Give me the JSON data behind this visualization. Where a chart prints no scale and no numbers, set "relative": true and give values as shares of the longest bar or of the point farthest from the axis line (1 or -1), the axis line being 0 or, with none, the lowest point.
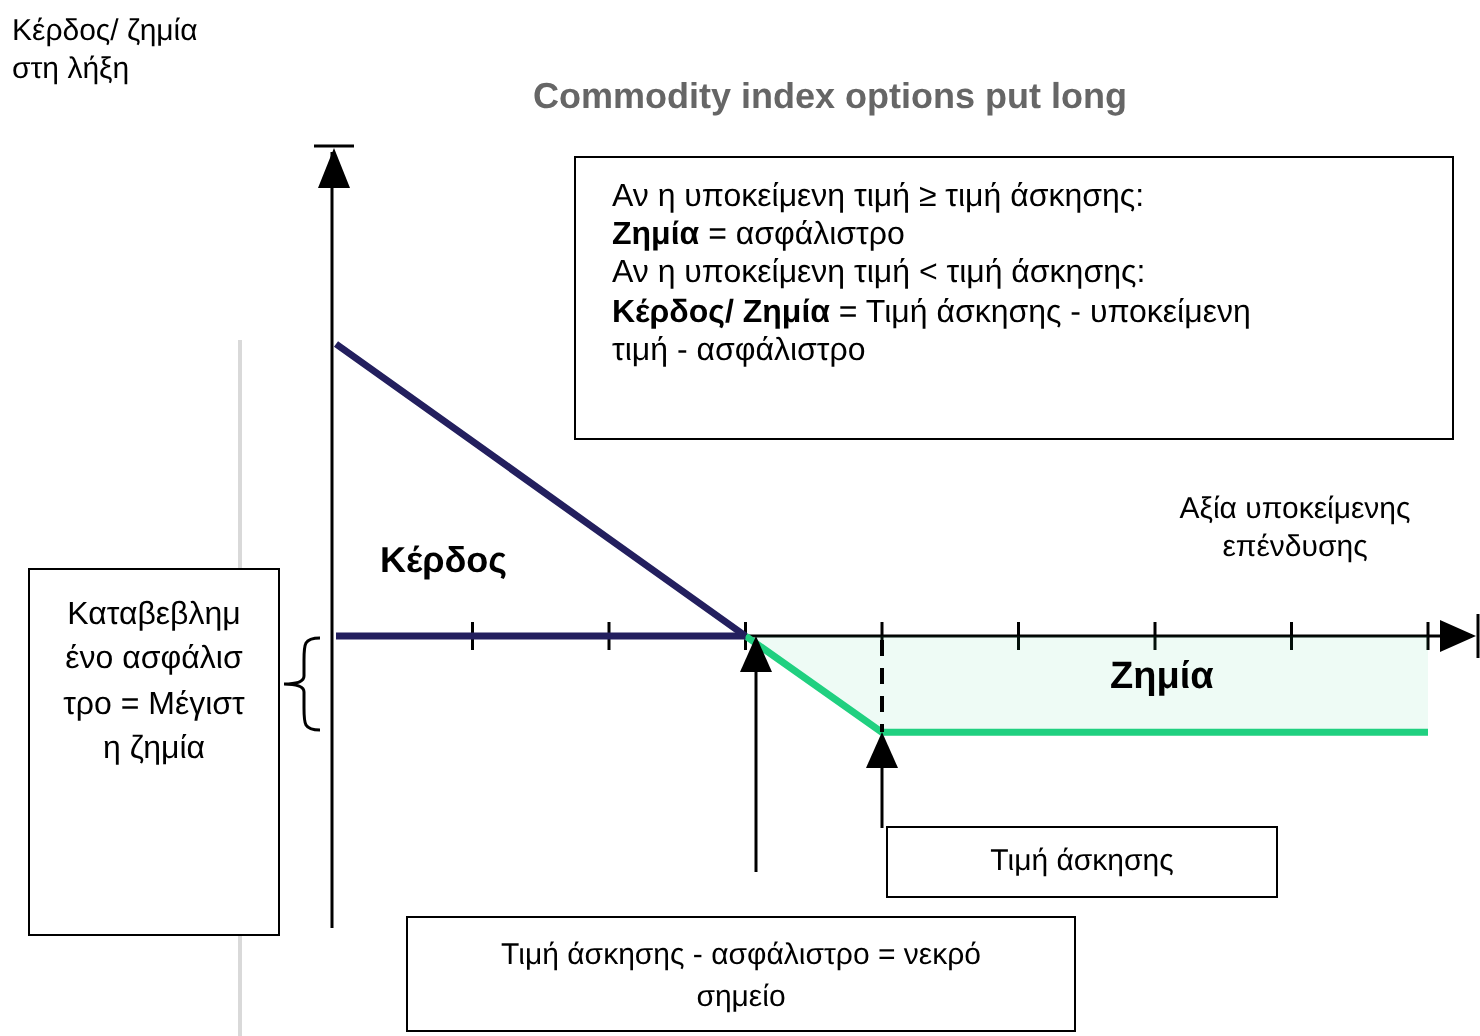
{
  "chart_data": {
    "type": "line",
    "title": "Commodity index options put long",
    "xlabel": "Αξία υποκείμενης επένδυσης",
    "relative": true,
    "marker": "none",
    "legend": false,
    "categories": [
      null,
      null,
      null,
      null,
      null,
      null,
      null,
      null,
      null
    ],
    "series": [
      {
        "color": "#231f5e",
        "values": [
          1,
          0.667,
          0.333,
          0,
          null,
          null,
          null,
          null,
          null
        ]
      },
      {
        "color": "#231f5e",
        "values": [
          0,
          0,
          0,
          0,
          null,
          null,
          null,
          null,
          null
        ]
      },
      {
        "type": "area",
        "color": "#20d080",
        "values": [
          null,
          null,
          null,
          0,
          -0.33,
          -0.33,
          -0.33,
          -0.33,
          -0.33
        ]
      }
    ],
    "annotations": [
      "Αν η υποκείμενη τιμή ≥ τιμή άσκησης:\nΖημία = ασφάλιστρο\nΑν η υποκείμενη τιμή < τιμή άσκησης:\nΚέρδος/ Ζημία = Τιμή άσκησης - υποκείμενη τιμή - ασφάλιστρο",
      "Κέρδος",
      "Ζημία",
      "Καταβεβλημένο ασφάλιστρο = Μέγιστη ζημία",
      "Τιμή άσκησης",
      "Τιμή άσκησης - ασφάλιστρο = νεκρό σημείο",
      "Κέρδος/ ζημία στη λήξη"
    ]
  }
}
